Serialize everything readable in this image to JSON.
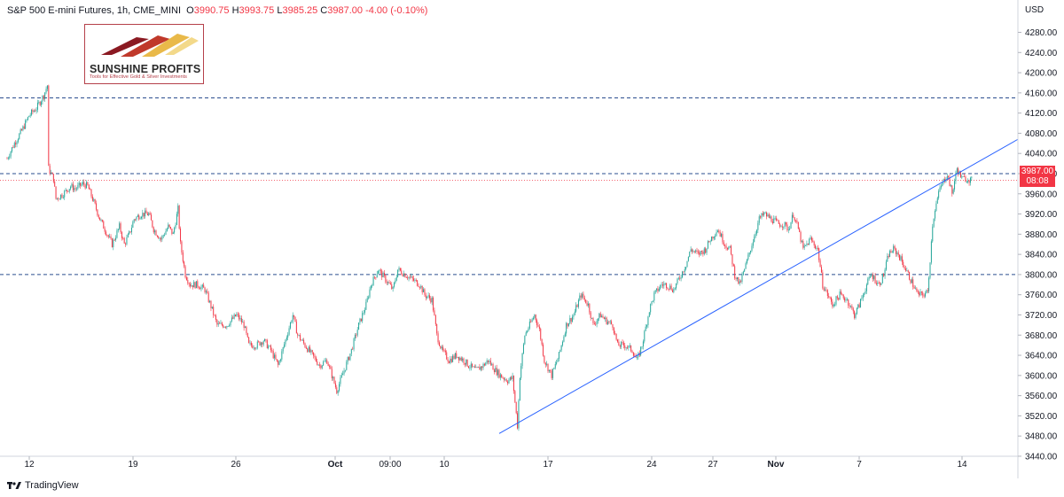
{
  "header": {
    "symbol": "S&P 500 E-mini Futures, 1h, CME_MINI",
    "o_label": "O",
    "o": "3990.75",
    "h_label": "H",
    "h": "3993.75",
    "l_label": "L",
    "l": "3985.25",
    "c_label": "C",
    "c": "3987.00",
    "change": "-4.00 (-0.10%)"
  },
  "logo": {
    "name": "SUNSHINE PROFITS",
    "tagline": "Tools for Effective Gold & Silver Investments"
  },
  "axis": {
    "currency": "USD"
  },
  "price_tag": {
    "price": "3987.00",
    "countdown": "08:08"
  },
  "footer": {
    "brand": "TradingView"
  },
  "colors": {
    "up": "#26a69a",
    "down": "#f23645",
    "trendline": "#2962ff",
    "level": "#2a4d8f"
  },
  "chart_data": {
    "type": "candlestick",
    "ylim": [
      3420,
      4300
    ],
    "y_ticks": [
      3440,
      3480,
      3520,
      3560,
      3600,
      3640,
      3680,
      3720,
      3760,
      3800,
      3840,
      3880,
      3920,
      3960,
      4000,
      4040,
      4080,
      4120,
      4160,
      4200,
      4240,
      4280
    ],
    "x_ticks": [
      "12",
      "19",
      "26",
      "Oct",
      "09:00",
      "10",
      "17",
      "24",
      "27",
      "Nov",
      "7",
      "14"
    ],
    "horizontal_levels": [
      4150,
      4000,
      3800
    ],
    "trendline": {
      "from_price": 3485,
      "to_price": 4068
    },
    "last_price": 3987,
    "path": [
      [
        0,
        4030
      ],
      [
        6,
        4060
      ],
      [
        12,
        4085
      ],
      [
        18,
        4115
      ],
      [
        24,
        4130
      ],
      [
        30,
        4155
      ],
      [
        33,
        4175
      ],
      [
        34,
        4010
      ],
      [
        38,
        3990
      ],
      [
        40,
        3950
      ],
      [
        46,
        3960
      ],
      [
        52,
        3975
      ],
      [
        56,
        3970
      ],
      [
        62,
        3980
      ],
      [
        66,
        3975
      ],
      [
        70,
        3950
      ],
      [
        76,
        3910
      ],
      [
        82,
        3880
      ],
      [
        86,
        3860
      ],
      [
        92,
        3895
      ],
      [
        96,
        3860
      ],
      [
        100,
        3880
      ],
      [
        104,
        3910
      ],
      [
        110,
        3920
      ],
      [
        116,
        3920
      ],
      [
        120,
        3890
      ],
      [
        126,
        3870
      ],
      [
        132,
        3895
      ],
      [
        136,
        3880
      ],
      [
        140,
        3930
      ],
      [
        142,
        3860
      ],
      [
        146,
        3800
      ],
      [
        150,
        3780
      ],
      [
        156,
        3780
      ],
      [
        162,
        3770
      ],
      [
        168,
        3730
      ],
      [
        172,
        3700
      ],
      [
        180,
        3700
      ],
      [
        188,
        3720
      ],
      [
        194,
        3700
      ],
      [
        198,
        3660
      ],
      [
        204,
        3660
      ],
      [
        210,
        3670
      ],
      [
        216,
        3650
      ],
      [
        222,
        3620
      ],
      [
        228,
        3670
      ],
      [
        234,
        3720
      ],
      [
        238,
        3680
      ],
      [
        244,
        3660
      ],
      [
        250,
        3640
      ],
      [
        256,
        3620
      ],
      [
        262,
        3630
      ],
      [
        266,
        3600
      ],
      [
        270,
        3570
      ],
      [
        276,
        3610
      ],
      [
        282,
        3650
      ],
      [
        288,
        3700
      ],
      [
        294,
        3740
      ],
      [
        298,
        3780
      ],
      [
        304,
        3810
      ],
      [
        310,
        3790
      ],
      [
        316,
        3770
      ],
      [
        320,
        3810
      ],
      [
        326,
        3800
      ],
      [
        332,
        3790
      ],
      [
        338,
        3780
      ],
      [
        342,
        3760
      ],
      [
        348,
        3750
      ],
      [
        352,
        3680
      ],
      [
        356,
        3650
      ],
      [
        362,
        3630
      ],
      [
        368,
        3640
      ],
      [
        374,
        3630
      ],
      [
        378,
        3620
      ],
      [
        384,
        3610
      ],
      [
        390,
        3620
      ],
      [
        394,
        3630
      ],
      [
        400,
        3610
      ],
      [
        404,
        3600
      ],
      [
        410,
        3590
      ],
      [
        414,
        3595
      ],
      [
        418,
        3500
      ],
      [
        420,
        3600
      ],
      [
        424,
        3680
      ],
      [
        428,
        3700
      ],
      [
        432,
        3720
      ],
      [
        436,
        3690
      ],
      [
        440,
        3630
      ],
      [
        446,
        3600
      ],
      [
        452,
        3640
      ],
      [
        458,
        3700
      ],
      [
        464,
        3720
      ],
      [
        470,
        3760
      ],
      [
        476,
        3740
      ],
      [
        480,
        3700
      ],
      [
        486,
        3720
      ],
      [
        490,
        3710
      ],
      [
        496,
        3700
      ],
      [
        500,
        3660
      ],
      [
        506,
        3660
      ],
      [
        512,
        3650
      ],
      [
        516,
        3630
      ],
      [
        520,
        3660
      ],
      [
        526,
        3730
      ],
      [
        530,
        3760
      ],
      [
        536,
        3780
      ],
      [
        540,
        3780
      ],
      [
        546,
        3770
      ],
      [
        550,
        3790
      ],
      [
        556,
        3820
      ],
      [
        560,
        3850
      ],
      [
        566,
        3840
      ],
      [
        572,
        3850
      ],
      [
        576,
        3870
      ],
      [
        582,
        3890
      ],
      [
        588,
        3860
      ],
      [
        592,
        3850
      ],
      [
        596,
        3800
      ],
      [
        600,
        3780
      ],
      [
        604,
        3810
      ],
      [
        610,
        3860
      ],
      [
        616,
        3910
      ],
      [
        620,
        3920
      ],
      [
        626,
        3910
      ],
      [
        632,
        3900
      ],
      [
        636,
        3900
      ],
      [
        640,
        3890
      ],
      [
        644,
        3920
      ],
      [
        648,
        3890
      ],
      [
        652,
        3850
      ],
      [
        658,
        3870
      ],
      [
        664,
        3850
      ],
      [
        668,
        3780
      ],
      [
        672,
        3760
      ],
      [
        676,
        3740
      ],
      [
        682,
        3760
      ],
      [
        688,
        3750
      ],
      [
        694,
        3720
      ],
      [
        698,
        3740
      ],
      [
        704,
        3780
      ],
      [
        708,
        3800
      ],
      [
        714,
        3780
      ],
      [
        718,
        3800
      ],
      [
        722,
        3840
      ],
      [
        726,
        3850
      ],
      [
        730,
        3840
      ],
      [
        734,
        3820
      ],
      [
        738,
        3800
      ],
      [
        742,
        3780
      ],
      [
        746,
        3760
      ],
      [
        750,
        3760
      ],
      [
        754,
        3765
      ],
      [
        756,
        3830
      ],
      [
        758,
        3900
      ],
      [
        760,
        3930
      ],
      [
        764,
        3970
      ],
      [
        770,
        4000
      ],
      [
        774,
        3960
      ],
      [
        778,
        4010
      ],
      [
        782,
        3990
      ],
      [
        786,
        3990
      ],
      [
        790,
        3987
      ]
    ]
  }
}
